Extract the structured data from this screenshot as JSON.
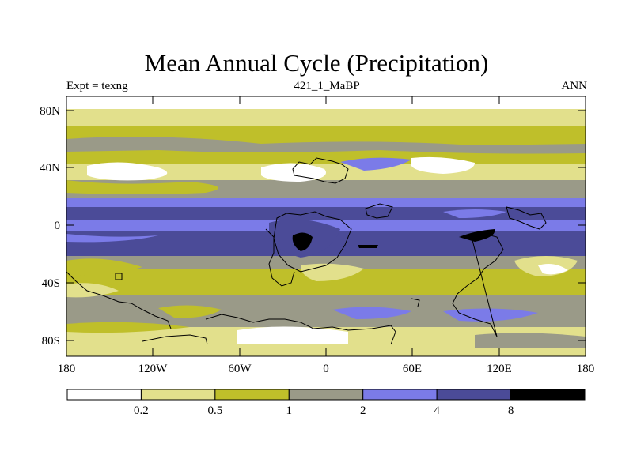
{
  "title": "Mean Annual Cycle (Precipitation)",
  "subtitle_left": "Expt = texng",
  "subtitle_center": "421_1_MaBP",
  "subtitle_right": "ANN",
  "map": {
    "lat_ticks": [
      "80N",
      "40N",
      "0",
      "40S",
      "80S"
    ],
    "lon_ticks": [
      "180",
      "120W",
      "60W",
      "0",
      "60E",
      "120E",
      "180"
    ]
  },
  "colorbar": {
    "colors": [
      "#ffffff",
      "#e2e08c",
      "#bfbf2a",
      "#9a9a88",
      "#7b7be8",
      "#4b4b98",
      "#000000"
    ],
    "labels": [
      "0.2",
      "0.5",
      "1",
      "2",
      "4",
      "8"
    ]
  }
}
